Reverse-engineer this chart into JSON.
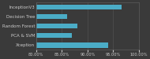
{
  "categories": [
    "InceptionV3",
    "Decision Tree",
    "Random Forest",
    "PCA & SVM",
    "Xception"
  ],
  "values": [
    96.7,
    86.0,
    88.0,
    87.0,
    94.0
  ],
  "bar_color": "#4bacc6",
  "background_color": "#3a3a3a",
  "text_color": "#cccccc",
  "grid_color": "#555555",
  "xlim": [
    80,
    100
  ],
  "xticks": [
    80,
    85,
    90,
    95,
    100
  ],
  "bar_height": 0.55,
  "label_fontsize": 4.0,
  "tick_fontsize": 3.6
}
